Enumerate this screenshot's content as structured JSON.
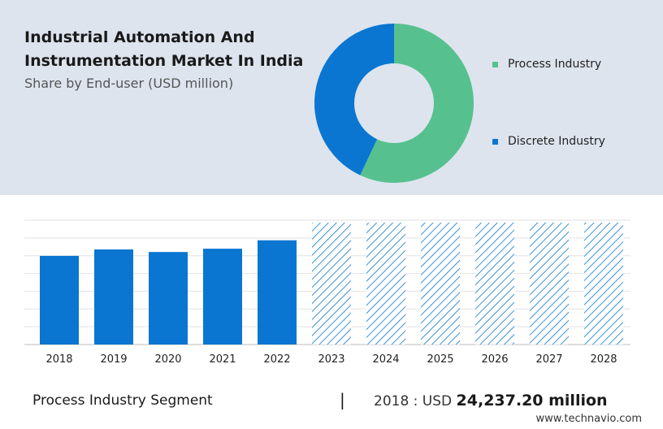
{
  "header": {
    "title": "Industrial Automation And Instrumentation Market In India",
    "subtitle": "Share by End-user (USD million)"
  },
  "chart_data": [
    {
      "type": "pie",
      "style": "donut",
      "legend_position": "right",
      "slices": [
        {
          "label": "Process Industry",
          "value": 57,
          "color": "#56c18f"
        },
        {
          "label": "Discrete Industry",
          "value": 43,
          "color": "#0a76d1"
        }
      ]
    },
    {
      "type": "bar",
      "categories": [
        "2018",
        "2019",
        "2020",
        "2021",
        "2022",
        "2023",
        "2024",
        "2025",
        "2026",
        "2027",
        "2028"
      ],
      "values": [
        24237.2,
        26000,
        25300,
        26200,
        28500,
        null,
        null,
        null,
        null,
        null,
        null
      ],
      "forecast_categories": [
        "2023",
        "2024",
        "2025",
        "2026",
        "2027",
        "2028"
      ],
      "ylim": [
        0,
        34000
      ],
      "grid": true,
      "bar_color": "#0a76d1",
      "forecast_color": "#0a76d1"
    }
  ],
  "footer": {
    "segment": "Process Industry Segment",
    "separator": "|",
    "year_label": "2018 : USD",
    "value_label": "24,237.20 million",
    "brand": "www.technavio.com"
  }
}
